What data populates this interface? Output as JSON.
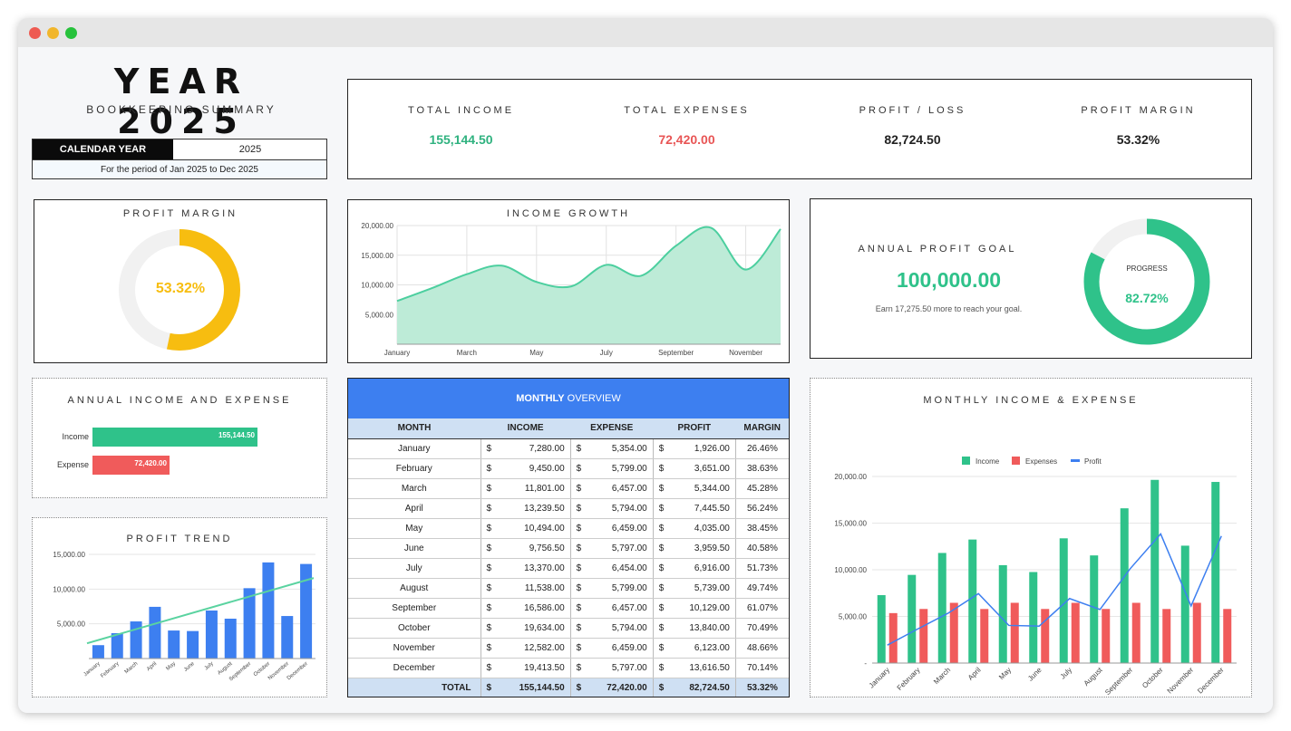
{
  "header": {
    "title": "YEAR 2025",
    "subtitle": "BOOKKEEPING SUMMARY",
    "calendar_label": "CALENDAR YEAR",
    "calendar_value": "2025",
    "period": "For the period of Jan 2025 to Dec 2025"
  },
  "kpis": [
    {
      "label": "TOTAL INCOME",
      "value": "155,144.50",
      "color": "#2fb27f"
    },
    {
      "label": "TOTAL EXPENSES",
      "value": "72,420.00",
      "color": "#e85555"
    },
    {
      "label": "PROFIT / LOSS",
      "value": "82,724.50",
      "color": "#222222"
    },
    {
      "label": "PROFIT MARGIN",
      "value": "53.32%",
      "color": "#222222"
    }
  ],
  "profit_margin": {
    "title": "PROFIT MARGIN",
    "value": "53.32%",
    "fraction": 0.5332,
    "color": "#f7bd10"
  },
  "income_growth": {
    "title": "INCOME GROWTH"
  },
  "profit_goal": {
    "title": "ANNUAL PROFIT GOAL",
    "goal": "100,000.00",
    "note": "Earn 17,275.50 more to reach your goal.",
    "progress_label": "PROGRESS",
    "progress_value": "82.72%",
    "fraction": 0.8272,
    "color": "#2fc28a"
  },
  "annual_ie": {
    "title": "ANNUAL INCOME AND EXPENSE",
    "rows": [
      {
        "label": "Income",
        "value": "155,144.50",
        "amount": 155144.5,
        "color": "#2fc28a"
      },
      {
        "label": "Expense",
        "value": "72,420.00",
        "amount": 72420,
        "color": "#f05b5b"
      }
    ]
  },
  "profit_trend": {
    "title": "PROFIT TREND"
  },
  "overview": {
    "title_bold": "MONTHLY",
    "title_rest": " OVERVIEW",
    "headers": [
      "MONTH",
      "INCOME",
      "EXPENSE",
      "PROFIT",
      "MARGIN"
    ],
    "currency": "$",
    "rows": [
      {
        "month": "January",
        "income": "7,280.00",
        "expense": "5,354.00",
        "profit": "1,926.00",
        "margin": "26.46%"
      },
      {
        "month": "February",
        "income": "9,450.00",
        "expense": "5,799.00",
        "profit": "3,651.00",
        "margin": "38.63%"
      },
      {
        "month": "March",
        "income": "11,801.00",
        "expense": "6,457.00",
        "profit": "5,344.00",
        "margin": "45.28%"
      },
      {
        "month": "April",
        "income": "13,239.50",
        "expense": "5,794.00",
        "profit": "7,445.50",
        "margin": "56.24%"
      },
      {
        "month": "May",
        "income": "10,494.00",
        "expense": "6,459.00",
        "profit": "4,035.00",
        "margin": "38.45%"
      },
      {
        "month": "June",
        "income": "9,756.50",
        "expense": "5,797.00",
        "profit": "3,959.50",
        "margin": "40.58%"
      },
      {
        "month": "July",
        "income": "13,370.00",
        "expense": "6,454.00",
        "profit": "6,916.00",
        "margin": "51.73%"
      },
      {
        "month": "August",
        "income": "11,538.00",
        "expense": "5,799.00",
        "profit": "5,739.00",
        "margin": "49.74%"
      },
      {
        "month": "September",
        "income": "16,586.00",
        "expense": "6,457.00",
        "profit": "10,129.00",
        "margin": "61.07%"
      },
      {
        "month": "October",
        "income": "19,634.00",
        "expense": "5,794.00",
        "profit": "13,840.00",
        "margin": "70.49%"
      },
      {
        "month": "November",
        "income": "12,582.00",
        "expense": "6,459.00",
        "profit": "6,123.00",
        "margin": "48.66%"
      },
      {
        "month": "December",
        "income": "19,413.50",
        "expense": "5,797.00",
        "profit": "13,616.50",
        "margin": "70.14%"
      }
    ],
    "total": {
      "label": "TOTAL",
      "income": "155,144.50",
      "expense": "72,420.00",
      "profit": "82,724.50",
      "margin": "53.32%"
    }
  },
  "monthly_ie": {
    "title": "MONTHLY INCOME & EXPENSE"
  },
  "chart_data": [
    {
      "type": "area",
      "title": "INCOME GROWTH",
      "x": [
        "January",
        "February",
        "March",
        "April",
        "May",
        "June",
        "July",
        "August",
        "September",
        "October",
        "November",
        "December"
      ],
      "x_tick_labels": [
        "January",
        "March",
        "May",
        "July",
        "September",
        "November"
      ],
      "y_ticks": [
        "20,000.00",
        "15,000.00",
        "10,000.00",
        "5,000.00"
      ],
      "values": [
        7280,
        9450,
        11801,
        13239.5,
        10494,
        9756.5,
        13370,
        11538,
        16586,
        19634,
        12582,
        19413.5
      ],
      "ylim": [
        0,
        20000
      ],
      "grid": true,
      "color": "#4ccf9f"
    },
    {
      "type": "bar",
      "title": "PROFIT TREND",
      "categories": [
        "January",
        "February",
        "March",
        "April",
        "May",
        "June",
        "July",
        "August",
        "September",
        "October",
        "November",
        "December"
      ],
      "values": [
        1926,
        3651,
        5344,
        7445.5,
        4035,
        3959.5,
        6916,
        5739,
        10129,
        13840,
        6123,
        13616.5
      ],
      "y_ticks": [
        "15,000.00",
        "10,000.00",
        "5,000.00"
      ],
      "ylim": [
        0,
        15000
      ],
      "trendline": true,
      "color": "#3d7ff0",
      "trend_color": "#5ad3a0"
    },
    {
      "type": "bar",
      "title": "MONTHLY INCOME & EXPENSE",
      "categories": [
        "January",
        "February",
        "March",
        "April",
        "May",
        "June",
        "July",
        "August",
        "September",
        "October",
        "November",
        "December"
      ],
      "y_ticks": [
        "20,000.00",
        "15,000.00",
        "10,000.00",
        "5,000.00",
        "-"
      ],
      "ylim": [
        0,
        20000
      ],
      "legend": "top",
      "series": [
        {
          "name": "Income",
          "type": "bar",
          "color": "#2fc28a",
          "values": [
            7280,
            9450,
            11801,
            13239.5,
            10494,
            9756.5,
            13370,
            11538,
            16586,
            19634,
            12582,
            19413.5
          ]
        },
        {
          "name": "Expenses",
          "type": "bar",
          "color": "#f05b5b",
          "values": [
            5354,
            5799,
            6457,
            5794,
            6459,
            5797,
            6454,
            5799,
            6457,
            5794,
            6459,
            5797
          ]
        },
        {
          "name": "Profit",
          "type": "line",
          "color": "#3d7ff0",
          "values": [
            1926,
            3651,
            5344,
            7445.5,
            4035,
            3959.5,
            6916,
            5739,
            10129,
            13840,
            6123,
            13616.5
          ]
        }
      ]
    }
  ]
}
